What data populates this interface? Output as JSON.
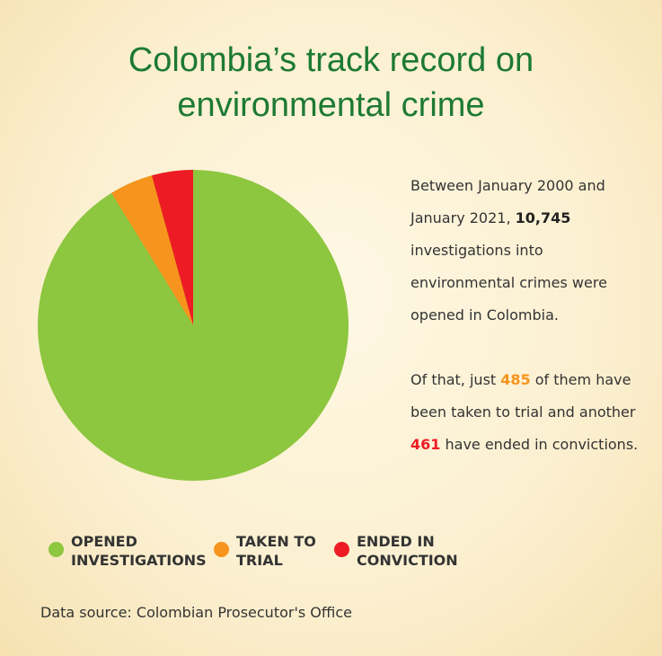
{
  "chart_data": {
    "type": "pie",
    "title": "Colombia’s track record on environmental crime",
    "categories": [
      "OPENED INVESTIGATIONS",
      "TAKEN TO TRIAL",
      "ENDED IN CONVICTION"
    ],
    "values": [
      10745,
      485,
      461
    ],
    "value_labels": [
      "10,745",
      "485",
      "461"
    ],
    "colors": [
      "#8dc63f",
      "#f7941d",
      "#ed1c24"
    ],
    "legend": "bottom"
  },
  "text": {
    "p1_a": "Between January 2000 and January 2021, ",
    "p1_b": " investigations into environmental crimes were opened in Colombia.",
    "p2_a": "Of that, just ",
    "p2_b": " of them have been taken to trial and another ",
    "p2_c": " have ended in convictions."
  },
  "source": "Data source: Colombian Prosecutor's Office"
}
